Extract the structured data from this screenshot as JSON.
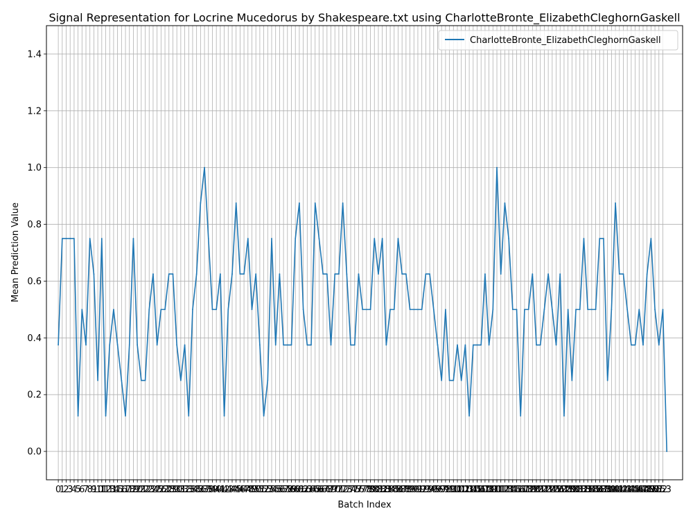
{
  "chart_data": {
    "type": "line",
    "title": "Signal Representation for Locrine Mucedorus by Shakespeare.txt using CharlotteBronte_ElizabethCleghornGaskell",
    "xlabel": "Batch Index",
    "ylabel": "Mean Prediction Value",
    "xlim": [
      -3,
      158
    ],
    "ylim": [
      -0.1,
      1.5
    ],
    "yticks": [
      0.0,
      0.2,
      0.4,
      0.6,
      0.8,
      1.0,
      1.2,
      1.4
    ],
    "xtick_count": 154,
    "grid": true,
    "legend_position": "top-right",
    "colors": {
      "series": "#1f77b4",
      "grid": "#b0b0b0"
    },
    "series": [
      {
        "name": "CharlotteBronte_ElizabethCleghornGaskell",
        "values": [
          0.375,
          0.75,
          0.75,
          0.75,
          0.75,
          0.125,
          0.5,
          0.375,
          0.75,
          0.625,
          0.25,
          0.75,
          0.125,
          0.375,
          0.5,
          0.375,
          0.25,
          0.125,
          0.375,
          0.75,
          0.375,
          0.25,
          0.25,
          0.5,
          0.625,
          0.375,
          0.5,
          0.5,
          0.625,
          0.625,
          0.375,
          0.25,
          0.375,
          0.125,
          0.5,
          0.625,
          0.875,
          1.0,
          0.75,
          0.5,
          0.5,
          0.625,
          0.125,
          0.5,
          0.625,
          0.875,
          0.625,
          0.625,
          0.75,
          0.5,
          0.625,
          0.375,
          0.125,
          0.25,
          0.75,
          0.375,
          0.625,
          0.375,
          0.375,
          0.375,
          0.75,
          0.875,
          0.5,
          0.375,
          0.375,
          0.875,
          0.75,
          0.625,
          0.625,
          0.375,
          0.625,
          0.625,
          0.875,
          0.625,
          0.375,
          0.375,
          0.625,
          0.5,
          0.5,
          0.5,
          0.75,
          0.625,
          0.75,
          0.375,
          0.5,
          0.5,
          0.75,
          0.625,
          0.625,
          0.5,
          0.5,
          0.5,
          0.5,
          0.625,
          0.625,
          0.5,
          0.375,
          0.25,
          0.5,
          0.25,
          0.25,
          0.375,
          0.25,
          0.375,
          0.125,
          0.375,
          0.375,
          0.375,
          0.625,
          0.375,
          0.5,
          1.0,
          0.625,
          0.875,
          0.75,
          0.5,
          0.5,
          0.125,
          0.5,
          0.5,
          0.625,
          0.375,
          0.375,
          0.5,
          0.625,
          0.5,
          0.375,
          0.625,
          0.125,
          0.5,
          0.25,
          0.5,
          0.5,
          0.75,
          0.5,
          0.5,
          0.5,
          0.75,
          0.75,
          0.25,
          0.5,
          0.875,
          0.625,
          0.625,
          0.5,
          0.375,
          0.375,
          0.5,
          0.375,
          0.625,
          0.75,
          0.5,
          0.375,
          0.5,
          0.0
        ]
      }
    ]
  }
}
